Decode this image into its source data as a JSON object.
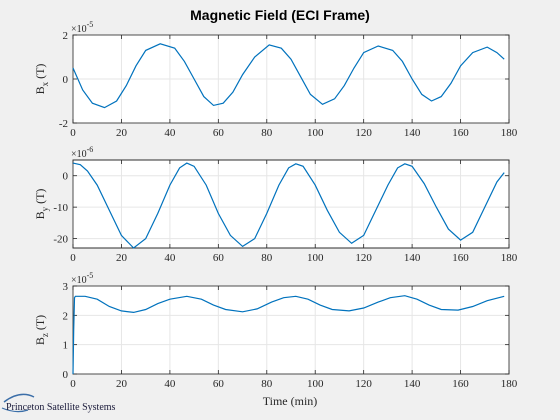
{
  "title": "Magnetic Field (ECI Frame)",
  "brand": {
    "name": "Princeton Satellite Systems"
  },
  "colors": {
    "series": "#0072bd",
    "background": "#f0f0f0",
    "axes_bg": "#ffffff",
    "grid": "#e6e6e6"
  },
  "chart_data": [
    {
      "type": "line",
      "ylabel": "B_x (T)",
      "ylabel_main": "B",
      "ylabel_sub": "x",
      "ylabel_unit": " (T)",
      "exponent": "×10",
      "exponent_power": "-5",
      "xlim": [
        0,
        180
      ],
      "ylim": [
        -2,
        2
      ],
      "grid": true,
      "xticks": [
        0,
        20,
        40,
        60,
        80,
        100,
        120,
        140,
        160,
        180
      ],
      "yticks": [
        -2,
        0,
        2
      ],
      "series": [
        {
          "x": [
            0,
            4,
            8,
            13,
            18,
            22,
            26,
            30,
            36,
            42,
            46,
            50,
            54,
            58,
            62,
            66,
            70,
            75,
            81,
            86,
            90,
            94,
            98,
            103,
            108,
            112,
            116,
            120,
            126,
            132,
            136,
            140,
            144,
            148,
            152,
            156,
            160,
            165,
            171,
            175,
            178
          ],
          "y": [
            0.5,
            -0.5,
            -1.1,
            -1.3,
            -1.0,
            -0.3,
            0.6,
            1.3,
            1.6,
            1.4,
            0.8,
            0.0,
            -0.8,
            -1.2,
            -1.1,
            -0.6,
            0.2,
            1.0,
            1.55,
            1.4,
            0.9,
            0.1,
            -0.7,
            -1.15,
            -0.9,
            -0.3,
            0.5,
            1.2,
            1.5,
            1.3,
            0.8,
            0.0,
            -0.7,
            -1.0,
            -0.8,
            -0.2,
            0.6,
            1.2,
            1.45,
            1.2,
            0.9
          ]
        }
      ]
    },
    {
      "type": "line",
      "ylabel": "B_y (T)",
      "ylabel_main": "B",
      "ylabel_sub": "y",
      "ylabel_unit": " (T)",
      "exponent": "×10",
      "exponent_power": "-6",
      "xlim": [
        0,
        180
      ],
      "ylim": [
        -23,
        5
      ],
      "grid": true,
      "xticks": [
        0,
        20,
        40,
        60,
        80,
        100,
        120,
        140,
        160,
        180
      ],
      "yticks": [
        -20,
        -10,
        0
      ],
      "series": [
        {
          "x": [
            0,
            3,
            6,
            10,
            15,
            20,
            25,
            30,
            35,
            40,
            44,
            47,
            50,
            55,
            60,
            65,
            70,
            75,
            80,
            85,
            89,
            92,
            95,
            100,
            105,
            110,
            115,
            120,
            125,
            130,
            134,
            137,
            140,
            145,
            150,
            155,
            160,
            165,
            170,
            175,
            178
          ],
          "y": [
            4,
            3.5,
            1.5,
            -3,
            -11,
            -19,
            -23,
            -20,
            -12,
            -3,
            2.5,
            4,
            3,
            -3,
            -12,
            -19,
            -22.5,
            -20,
            -12,
            -3,
            2.5,
            3.8,
            3,
            -3,
            -11,
            -18,
            -21.5,
            -19,
            -11,
            -3,
            2.5,
            3.8,
            3,
            -2.5,
            -10,
            -17,
            -20.5,
            -18,
            -10,
            -2,
            1
          ]
        }
      ]
    },
    {
      "type": "line",
      "ylabel": "B_z (T)",
      "ylabel_main": "B",
      "ylabel_sub": "z",
      "ylabel_unit": " (T)",
      "exponent": "×10",
      "exponent_power": "-5",
      "xlim": [
        0,
        180
      ],
      "ylim": [
        0,
        3
      ],
      "grid": true,
      "xticks": [
        0,
        20,
        40,
        60,
        80,
        100,
        120,
        140,
        160,
        180
      ],
      "yticks": [
        0,
        1,
        2,
        3
      ],
      "series": [
        {
          "x": [
            0,
            0.3,
            0.6,
            1,
            5,
            10,
            15,
            20,
            25,
            30,
            35,
            40,
            47,
            53,
            58,
            63,
            70,
            76,
            82,
            87,
            92,
            97,
            102,
            107,
            114,
            120,
            126,
            131,
            137,
            142,
            147,
            152,
            159,
            165,
            171,
            178
          ],
          "y": [
            0,
            1.5,
            2.6,
            2.65,
            2.65,
            2.55,
            2.3,
            2.15,
            2.1,
            2.2,
            2.4,
            2.55,
            2.65,
            2.55,
            2.35,
            2.2,
            2.12,
            2.22,
            2.45,
            2.6,
            2.65,
            2.55,
            2.35,
            2.2,
            2.15,
            2.25,
            2.45,
            2.6,
            2.67,
            2.55,
            2.35,
            2.2,
            2.18,
            2.3,
            2.5,
            2.65
          ]
        }
      ]
    }
  ],
  "xlabel": "Time (min)"
}
